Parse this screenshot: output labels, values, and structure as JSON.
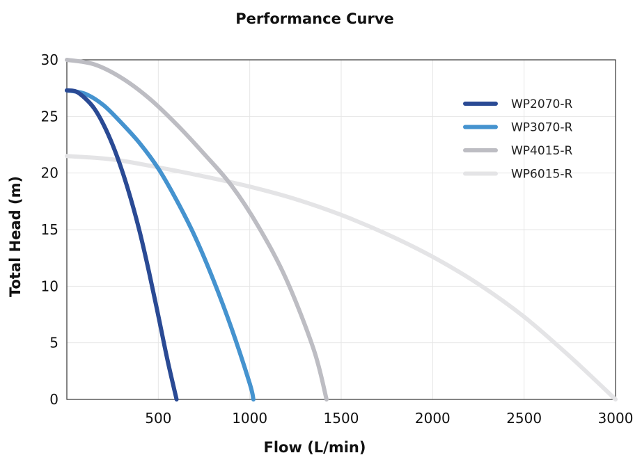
{
  "chart_data": {
    "type": "line",
    "title": "Performance Curve",
    "xlabel": "Flow (L/min)",
    "ylabel": "Total Head (m)",
    "xlim": [
      0,
      3000
    ],
    "ylim": [
      0,
      30
    ],
    "xticks": [
      500,
      1000,
      1500,
      2000,
      2500,
      3000
    ],
    "xtick_labels": [
      "500",
      "1000",
      "1500",
      "2000",
      "2500",
      "3000"
    ],
    "yticks": [
      0,
      5,
      10,
      15,
      20,
      25,
      30
    ],
    "ytick_labels": [
      "0",
      "5",
      "10",
      "15",
      "20",
      "25",
      "30"
    ],
    "grid": true,
    "legend_position": "top-right",
    "series": [
      {
        "name": "WP2070-R",
        "color": "#2a4a94",
        "x": [
          0,
          50,
          100,
          150,
          200,
          250,
          300,
          350,
          400,
          450,
          500,
          550,
          600
        ],
        "y": [
          27.3,
          27.2,
          26.6,
          25.7,
          24.3,
          22.5,
          20.3,
          17.7,
          14.7,
          11.2,
          7.4,
          3.5,
          0
        ]
      },
      {
        "name": "WP3070-R",
        "color": "#4593cf",
        "x": [
          0,
          100,
          200,
          300,
          400,
          500,
          600,
          700,
          800,
          900,
          1000,
          1020
        ],
        "y": [
          27.3,
          27.0,
          26.0,
          24.4,
          22.6,
          20.4,
          17.6,
          14.4,
          10.6,
          6.3,
          1.4,
          0
        ]
      },
      {
        "name": "WP4015-R",
        "color": "#bdbdc3",
        "x": [
          0,
          150,
          300,
          450,
          600,
          750,
          900,
          1050,
          1200,
          1350,
          1420
        ],
        "y": [
          30.0,
          29.6,
          28.4,
          26.6,
          24.3,
          21.7,
          18.9,
          15.2,
          10.6,
          4.4,
          0
        ]
      },
      {
        "name": "WP6015-R",
        "color": "#e4e4e6",
        "x": [
          0,
          250,
          500,
          750,
          1000,
          1250,
          1500,
          1750,
          2000,
          2250,
          2500,
          2750,
          3000
        ],
        "y": [
          21.5,
          21.2,
          20.5,
          19.7,
          18.8,
          17.7,
          16.3,
          14.6,
          12.6,
          10.2,
          7.3,
          3.8,
          0
        ]
      }
    ]
  }
}
